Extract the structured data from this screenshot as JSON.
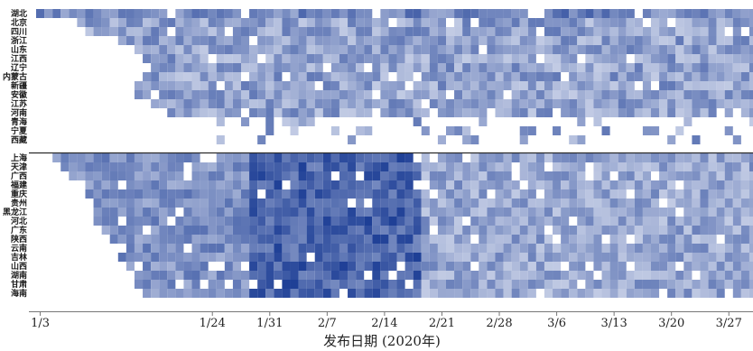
{
  "chart_data": {
    "type": "heatmap",
    "title": "",
    "xlabel": "发布日期 (2020年)",
    "ylabel": "",
    "x_ticks": [
      "1/3",
      "1/24",
      "1/31",
      "2/7",
      "2/14",
      "2/21",
      "2/28",
      "3/6",
      "3/13",
      "3/20",
      "3/27"
    ],
    "x_range": [
      "2020-01-03",
      "2020-03-31"
    ],
    "groups": [
      {
        "name": "",
        "rows": [
          "湖北",
          "北京",
          "四川",
          "浙江",
          "山东",
          "江西",
          "辽宁",
          "内蒙古",
          "新疆",
          "安徽",
          "江苏",
          "河南",
          "青海",
          "宁夏",
          "西藏"
        ]
      },
      {
        "name": "",
        "rows": [
          "上海",
          "天津",
          "广西",
          "福建",
          "重庆",
          "贵州",
          "黑龙江",
          "河北",
          "广东",
          "陕西",
          "云南",
          "吉林",
          "山西",
          "湖南",
          "甘肃",
          "海南"
        ]
      }
    ],
    "color_scale": {
      "low": "#dfe4f2",
      "high": "#1e3f96",
      "empty": "#ffffff"
    },
    "group_separator": true,
    "grid": false
  }
}
